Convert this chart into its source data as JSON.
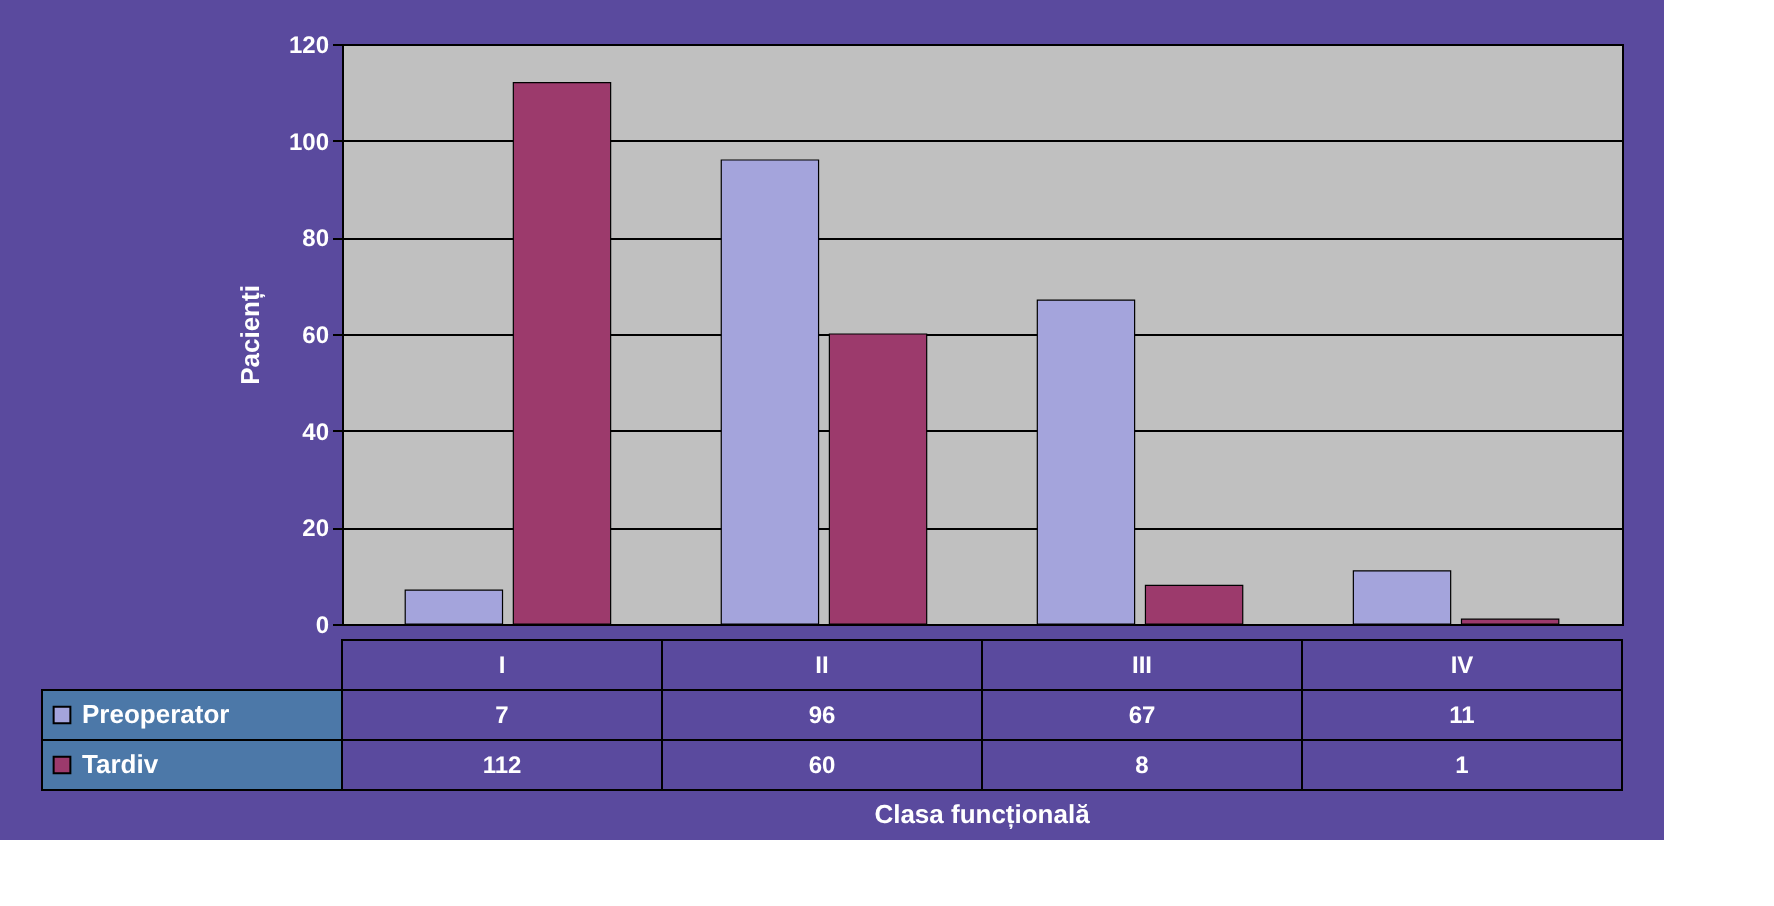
{
  "chart_data": {
    "type": "bar",
    "xlabel": "Clasa funcțională",
    "ylabel": "Pacienți",
    "categories": [
      "I",
      "II",
      "III",
      "IV"
    ],
    "series": [
      {
        "name": "Preoperator",
        "color": "#a4a4dc",
        "values": [
          7,
          96,
          67,
          11
        ]
      },
      {
        "name": "Tardiv",
        "color": "#9c3a6c",
        "values": [
          112,
          60,
          8,
          1
        ]
      }
    ],
    "ylim": [
      0,
      120
    ],
    "yticks": [
      0,
      20,
      40,
      60,
      80,
      100,
      120
    ],
    "grid": "y",
    "legend": "bottom left",
    "data_labels": true
  }
}
